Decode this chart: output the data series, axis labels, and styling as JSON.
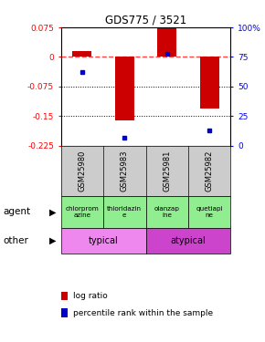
{
  "title": "GDS775 / 3521",
  "samples": [
    "GSM25980",
    "GSM25983",
    "GSM25981",
    "GSM25982"
  ],
  "log_ratios": [
    0.015,
    -0.16,
    0.075,
    -0.13
  ],
  "percentile_ranks": [
    62,
    7,
    78,
    13
  ],
  "ylim_left": [
    -0.225,
    0.075
  ],
  "ylim_right": [
    0,
    100
  ],
  "yticks_left": [
    0.075,
    0,
    -0.075,
    -0.15,
    -0.225
  ],
  "yticks_right": [
    100,
    75,
    50,
    25,
    0
  ],
  "agents": [
    "chlorprom\nazine",
    "thioridazin\ne",
    "olanzap\nine",
    "quetiapi\nne"
  ],
  "other_labels": [
    "typical",
    "atypical"
  ],
  "typical_color": "#ee88ee",
  "atypical_color": "#cc44cc",
  "agent_color": "#90ee90",
  "bar_color": "#cc0000",
  "dot_color": "#0000cc",
  "zero_line_color": "#ff4444",
  "dotted_line_color": "#000000",
  "background_color": "#ffffff",
  "table_bg": "#cccccc"
}
